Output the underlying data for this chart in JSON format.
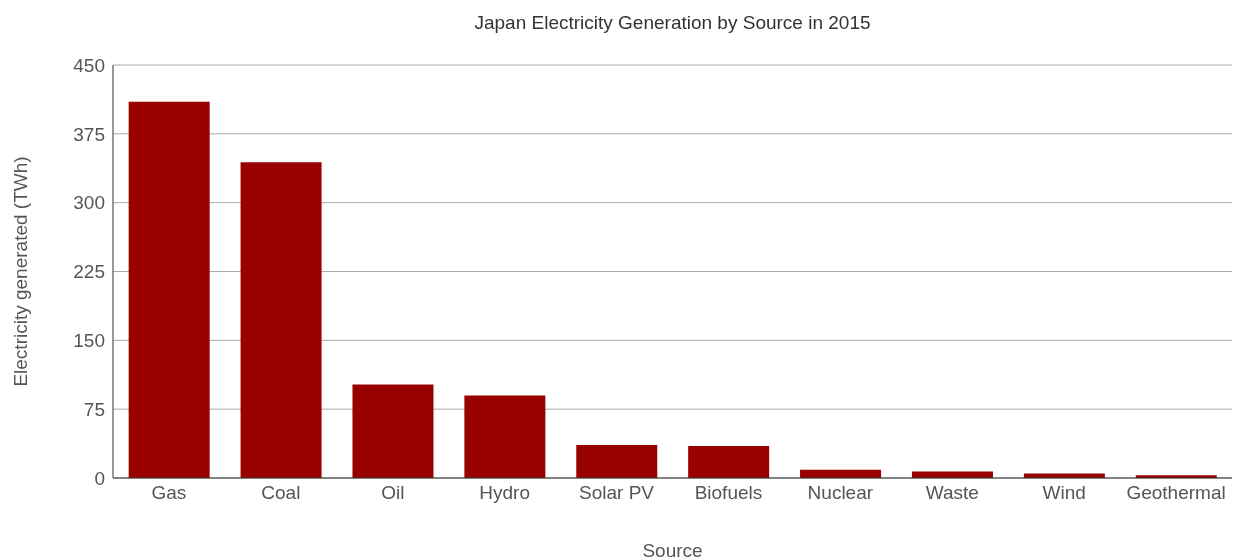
{
  "chart_data": {
    "type": "bar",
    "title": "Japan Electricity Generation by Source in 2015",
    "xlabel": "Source",
    "ylabel": "Electricity generated (TWh)",
    "categories": [
      "Gas",
      "Coal",
      "Oil",
      "Hydro",
      "Solar PV",
      "Biofuels",
      "Nuclear",
      "Waste",
      "Wind",
      "Geothermal"
    ],
    "values": [
      410,
      344,
      102,
      90,
      36,
      35,
      9,
      7,
      5,
      3
    ],
    "color": "#990000",
    "ylim": [
      0,
      450
    ],
    "yticks": [
      0,
      75,
      150,
      225,
      300,
      375,
      450
    ],
    "grid": "y",
    "legend": false
  }
}
